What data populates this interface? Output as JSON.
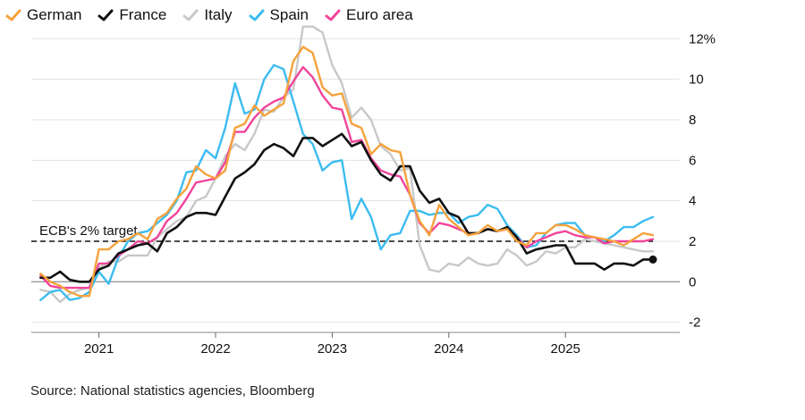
{
  "source": "Source: National statistics agencies, Bloomberg",
  "chart_data": {
    "type": "line",
    "title": "",
    "xlabel": "",
    "ylabel": "",
    "y_unit_label": "12%",
    "ylim": [
      -2.5,
      12.5
    ],
    "yticks": [
      -2,
      0,
      2,
      4,
      6,
      8,
      10,
      12
    ],
    "xlim": [
      2020.42,
      2025.98
    ],
    "xticks": [
      {
        "label": "2021",
        "value": 2021
      },
      {
        "label": "2022",
        "value": 2022
      },
      {
        "label": "2023",
        "value": 2023
      },
      {
        "label": "2024",
        "value": 2024
      },
      {
        "label": "2025",
        "value": 2025
      }
    ],
    "grid": true,
    "legend_position": "top-left",
    "target": {
      "label": "ECB's 2% target",
      "value": 2.0
    },
    "x": [
      2020.5,
      2020.583,
      2020.667,
      2020.75,
      2020.833,
      2020.917,
      2021.0,
      2021.083,
      2021.167,
      2021.25,
      2021.333,
      2021.417,
      2021.5,
      2021.583,
      2021.667,
      2021.75,
      2021.833,
      2021.917,
      2022.0,
      2022.083,
      2022.167,
      2022.25,
      2022.333,
      2022.417,
      2022.5,
      2022.583,
      2022.667,
      2022.75,
      2022.833,
      2022.917,
      2023.0,
      2023.083,
      2023.167,
      2023.25,
      2023.333,
      2023.417,
      2023.5,
      2023.583,
      2023.667,
      2023.75,
      2023.833,
      2023.917,
      2024.0,
      2024.083,
      2024.167,
      2024.25,
      2024.333,
      2024.417,
      2024.5,
      2024.583,
      2024.667,
      2024.75,
      2024.833,
      2024.917,
      2025.0,
      2025.083,
      2025.167,
      2025.25,
      2025.333,
      2025.417,
      2025.5,
      2025.583,
      2025.667,
      2025.75
    ],
    "series": [
      {
        "name": "German",
        "color": "#f5a23c",
        "values": [
          0.4,
          0.0,
          -0.2,
          -0.5,
          -0.7,
          -0.7,
          1.6,
          1.6,
          2.0,
          2.1,
          2.4,
          2.1,
          3.1,
          3.4,
          4.1,
          4.6,
          5.7,
          5.3,
          5.1,
          5.5,
          7.6,
          7.8,
          8.7,
          8.2,
          8.5,
          8.8,
          10.9,
          11.6,
          11.3,
          9.6,
          9.2,
          9.3,
          7.8,
          7.6,
          6.3,
          6.8,
          6.5,
          6.4,
          4.3,
          3.0,
          2.3,
          3.8,
          3.1,
          2.7,
          2.3,
          2.4,
          2.8,
          2.5,
          2.6,
          2.0,
          1.8,
          2.4,
          2.4,
          2.8,
          2.8,
          2.6,
          2.3,
          2.2,
          2.1,
          2.0,
          1.8,
          2.1,
          2.4,
          2.3
        ]
      },
      {
        "name": "France",
        "color": "#111111",
        "values": [
          0.2,
          0.2,
          0.5,
          0.1,
          0.0,
          0.0,
          0.6,
          0.8,
          1.4,
          1.6,
          1.8,
          1.9,
          1.5,
          2.4,
          2.7,
          3.2,
          3.4,
          3.4,
          3.3,
          4.2,
          5.1,
          5.4,
          5.8,
          6.5,
          6.8,
          6.6,
          6.2,
          7.1,
          7.1,
          6.7,
          7.0,
          7.3,
          6.7,
          6.9,
          6.0,
          5.3,
          5.0,
          5.7,
          5.7,
          4.5,
          3.9,
          4.1,
          3.4,
          3.2,
          2.4,
          2.4,
          2.6,
          2.5,
          2.7,
          2.2,
          1.4,
          1.6,
          1.7,
          1.8,
          1.8,
          0.9,
          0.9,
          0.9,
          0.6,
          0.9,
          0.9,
          0.8,
          1.1,
          1.1
        ]
      },
      {
        "name": "Italy",
        "color": "#c8c8c8",
        "values": [
          -0.4,
          -0.5,
          -1.0,
          -0.6,
          -0.4,
          -0.3,
          0.7,
          1.0,
          1.0,
          1.3,
          1.3,
          1.3,
          2.2,
          2.6,
          3.0,
          3.2,
          4.0,
          4.2,
          5.1,
          6.2,
          6.8,
          6.5,
          7.3,
          8.5,
          8.4,
          9.1,
          9.5,
          12.6,
          12.6,
          12.3,
          10.7,
          9.8,
          8.1,
          8.6,
          8.0,
          6.7,
          6.3,
          5.5,
          5.6,
          1.8,
          0.6,
          0.5,
          0.9,
          0.8,
          1.2,
          0.9,
          0.8,
          0.9,
          1.6,
          1.3,
          0.8,
          1.0,
          1.5,
          1.4,
          1.7,
          1.7,
          2.1,
          2.0,
          1.9,
          1.8,
          1.7,
          1.6,
          1.5,
          1.5
        ]
      },
      {
        "name": "Spain",
        "color": "#3cbcf0",
        "values": [
          -0.9,
          -0.5,
          -0.4,
          -0.9,
          -0.8,
          -0.5,
          0.5,
          -0.1,
          1.2,
          2.0,
          2.4,
          2.5,
          2.9,
          3.3,
          4.0,
          5.4,
          5.5,
          6.5,
          6.1,
          7.6,
          9.8,
          8.3,
          8.5,
          10.0,
          10.7,
          10.5,
          8.9,
          7.3,
          6.8,
          5.5,
          5.9,
          6.0,
          3.1,
          4.1,
          3.2,
          1.6,
          2.3,
          2.4,
          3.5,
          3.5,
          3.3,
          3.4,
          3.4,
          2.9,
          3.2,
          3.3,
          3.8,
          3.6,
          2.8,
          2.3,
          1.7,
          1.8,
          2.4,
          2.8,
          2.9,
          2.9,
          2.3,
          2.2,
          2.0,
          2.3,
          2.7,
          2.7,
          3.0,
          3.2
        ]
      },
      {
        "name": "Euro area",
        "color": "#f0449b",
        "values": [
          0.3,
          -0.2,
          -0.3,
          -0.3,
          -0.3,
          -0.3,
          0.9,
          0.9,
          1.3,
          1.6,
          2.0,
          1.9,
          2.2,
          3.0,
          3.4,
          4.1,
          4.9,
          5.0,
          5.1,
          5.9,
          7.4,
          7.4,
          8.1,
          8.6,
          8.9,
          9.1,
          9.9,
          10.6,
          10.1,
          9.2,
          8.6,
          8.5,
          6.9,
          7.0,
          6.1,
          5.5,
          5.3,
          5.2,
          4.3,
          2.9,
          2.4,
          2.9,
          2.8,
          2.6,
          2.4,
          2.4,
          2.6,
          2.5,
          2.6,
          2.2,
          1.7,
          2.0,
          2.2,
          2.4,
          2.5,
          2.3,
          2.2,
          2.2,
          1.9,
          2.0,
          2.0,
          2.0,
          2.0,
          2.1
        ]
      }
    ]
  }
}
